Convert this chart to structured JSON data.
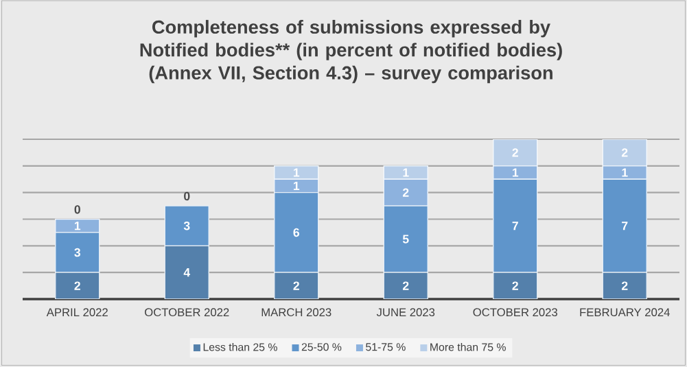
{
  "chart_data": {
    "type": "bar",
    "stacked": true,
    "title": "Completeness of submissions expressed by Notified bodies** (in percent of notified bodies) (Annex VII, Section 4.3) – survey comparison",
    "categories": [
      "APRIL 2022",
      "OCTOBER 2022",
      "MARCH 2023",
      "JUNE 2023",
      "OCTOBER 2023",
      "FEBRUARY 2024"
    ],
    "series": [
      {
        "name": "Less than 25 %",
        "color": "#5480ab",
        "values": [
          2,
          4,
          2,
          2,
          2,
          2
        ],
        "value_labels": [
          "2",
          "4",
          "2",
          "2",
          "2",
          "2"
        ]
      },
      {
        "name": "25-50 %",
        "color": "#5f95cb",
        "values": [
          3,
          3,
          6,
          5,
          7,
          7
        ],
        "value_labels": [
          "3",
          "3",
          "6",
          "5",
          "7",
          "7"
        ]
      },
      {
        "name": "51-75 %",
        "color": "#8db2de",
        "values": [
          1,
          0,
          1,
          2,
          1,
          1
        ],
        "value_labels": [
          "1",
          "0",
          "1",
          "2",
          "1",
          "1"
        ]
      },
      {
        "name": "More than 75 %",
        "color": "#b9cfe9",
        "values": [
          0,
          0,
          1,
          1,
          2,
          2
        ],
        "value_labels": [
          "0",
          null,
          "1",
          "1",
          "2",
          "2"
        ]
      }
    ],
    "ylim": [
      0,
      12
    ],
    "yticks": [
      {
        "value": 0,
        "label": null
      },
      {
        "value": 2,
        "label": null
      },
      {
        "value": 4,
        "label": null
      },
      {
        "value": 6,
        "label": null
      },
      {
        "value": 8,
        "label": null
      },
      {
        "value": 10,
        "label": null
      },
      {
        "value": 12,
        "label": null
      }
    ],
    "tick_labels": "x",
    "grid": "y",
    "legend": "bottom"
  }
}
